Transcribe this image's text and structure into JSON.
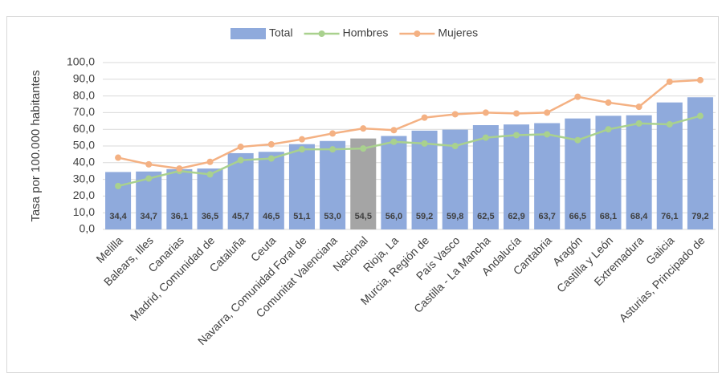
{
  "chart_data": {
    "type": "bar-line",
    "y_label": "Tasa por 100.000 habitantes",
    "categories": [
      "Melilla",
      "Balears, Illes",
      "Canarias",
      "Madrid, Comunidad de",
      "Cataluña",
      "Ceuta",
      "Navarra, Comunidad Foral de",
      "Comunitat Valenciana",
      "Nacional",
      "Rioja, La",
      "Murcia, Región de",
      "País Vasco",
      "Castilla - La Mancha",
      "Andalucía",
      "Cantabria",
      "Aragón",
      "Castilla y León",
      "Extremadura",
      "Galicia",
      "Asturias, Principado de"
    ],
    "series": [
      {
        "name": "Total",
        "type": "bar",
        "color": "#8faadc",
        "colors": [
          "#8faadc",
          "#8faadc",
          "#8faadc",
          "#8faadc",
          "#8faadc",
          "#8faadc",
          "#8faadc",
          "#8faadc",
          "#a5a5a5",
          "#8faadc",
          "#8faadc",
          "#8faadc",
          "#8faadc",
          "#8faadc",
          "#8faadc",
          "#8faadc",
          "#8faadc",
          "#8faadc",
          "#8faadc",
          "#8faadc"
        ],
        "values": [
          34.4,
          34.7,
          36.1,
          36.5,
          45.7,
          46.5,
          51.1,
          53.0,
          54.5,
          56.0,
          59.2,
          59.8,
          62.5,
          62.9,
          63.7,
          66.5,
          68.1,
          68.4,
          76.1,
          79.2
        ],
        "value_labels": [
          "34,4",
          "34,7",
          "36,1",
          "36,5",
          "45,7",
          "46,5",
          "51,1",
          "53,0",
          "54,5",
          "56,0",
          "59,2",
          "59,8",
          "62,5",
          "62,9",
          "63,7",
          "66,5",
          "68,1",
          "68,4",
          "76,1",
          "79,2"
        ]
      },
      {
        "name": "Hombres",
        "type": "line",
        "color": "#a9d18e",
        "values": [
          26,
          30.5,
          35,
          33,
          41.5,
          42.5,
          48,
          48,
          48.5,
          52.5,
          51.5,
          50,
          55,
          56.5,
          57,
          53.5,
          60,
          63.5,
          63,
          68
        ]
      },
      {
        "name": "Mujeres",
        "type": "line",
        "color": "#f4b183",
        "values": [
          43,
          39,
          36.5,
          40.5,
          49.5,
          51,
          54,
          57.5,
          60.5,
          59.5,
          67,
          69,
          70,
          69.5,
          70,
          79.5,
          76,
          73.5,
          88.5,
          89.5
        ]
      }
    ],
    "ylim": [
      0,
      100
    ],
    "yticks": [
      {
        "value": 0,
        "label": "0,0"
      },
      {
        "value": 10,
        "label": "10,0"
      },
      {
        "value": 20,
        "label": "20,0"
      },
      {
        "value": 30,
        "label": "30,0"
      },
      {
        "value": 40,
        "label": "40,0"
      },
      {
        "value": 50,
        "label": "50,0"
      },
      {
        "value": 60,
        "label": "60,0"
      },
      {
        "value": 70,
        "label": "70,0"
      },
      {
        "value": 80,
        "label": "80,0"
      },
      {
        "value": 90,
        "label": "90,0"
      },
      {
        "value": 100,
        "label": "100,0"
      }
    ],
    "grid": true,
    "legend": "top"
  }
}
